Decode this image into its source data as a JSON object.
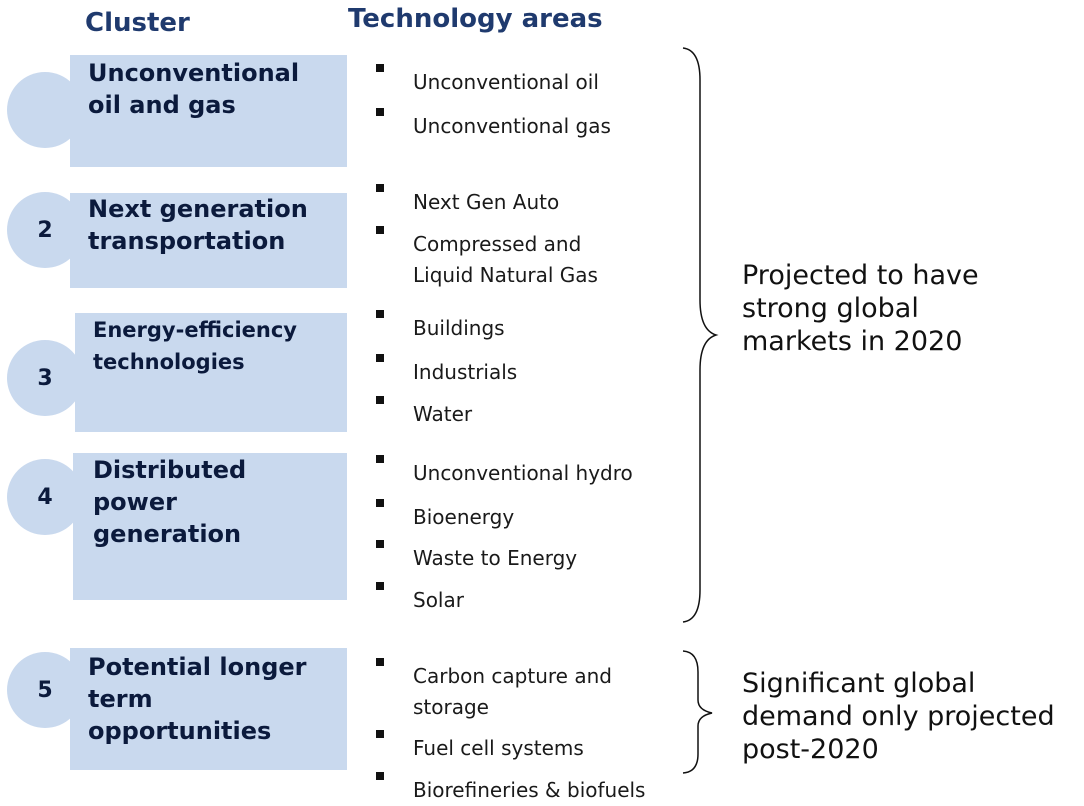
{
  "headers": {
    "cluster": "Cluster",
    "technology": "Technology areas"
  },
  "clusters": [
    {
      "label": "Unconventional\noil and gas",
      "items": [
        "Unconventional oil",
        "Unconventional gas"
      ]
    },
    {
      "number": "2",
      "label": "Next generation\ntransportation",
      "items": [
        "Next Gen Auto",
        "Compressed and\nLiquid Natural Gas"
      ]
    },
    {
      "number": "3",
      "label": "Energy-efficiency\ntechnologies",
      "items": [
        "Buildings",
        "Industrials",
        "Water"
      ]
    },
    {
      "number": "4",
      "label": "Distributed\npower\ngeneration",
      "items": [
        "Unconventional hydro",
        "Bioenergy",
        "Waste to Energy",
        "Solar"
      ]
    },
    {
      "number": "5",
      "label": "Potential longer\nterm\nopportunities",
      "items": [
        "Carbon capture and\nstorage",
        "Fuel cell systems",
        "Biorefineries & biofuels"
      ]
    }
  ],
  "braces": [
    {
      "text": "Projected to have\nstrong global\nmarkets in 2020"
    },
    {
      "text": "Significant global\ndemand only projected\npost-2020"
    }
  ]
}
